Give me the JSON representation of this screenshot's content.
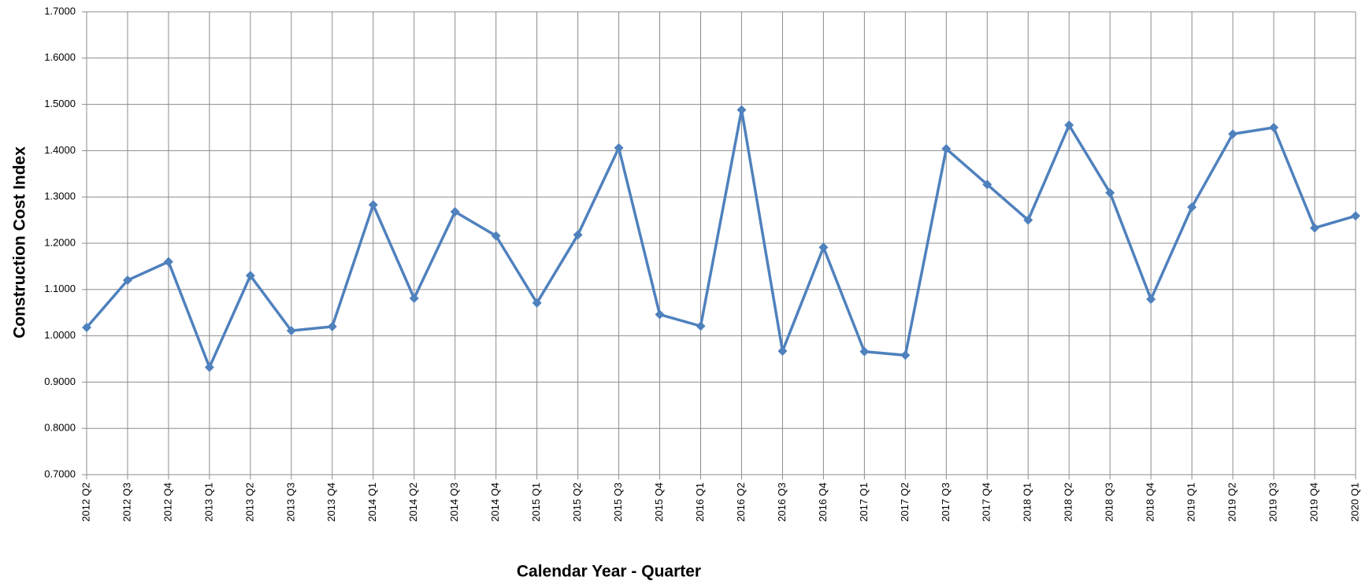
{
  "chart_data": {
    "type": "line",
    "xlabel": "Calendar Year - Quarter",
    "ylabel": "Construction Cost Index",
    "categories": [
      "2012 Q2",
      "2012 Q3",
      "2012 Q4",
      "2013 Q1",
      "2013 Q2",
      "2013 Q3",
      "2013 Q4",
      "2014 Q1",
      "2014 Q2",
      "2014 Q3",
      "2014 Q4",
      "2015 Q1",
      "2015 Q2",
      "2015 Q3",
      "2015 Q4",
      "2016 Q1",
      "2016 Q2",
      "2016 Q3",
      "2016 Q4",
      "2017 Q1",
      "2017 Q2",
      "2017 Q3",
      "2017 Q4",
      "2018 Q1",
      "2018 Q2",
      "2018 Q3",
      "2018 Q4",
      "2019 Q1",
      "2019 Q2",
      "2019 Q3",
      "2019 Q4",
      "2020 Q1"
    ],
    "values": [
      1.018,
      1.12,
      1.16,
      0.932,
      1.13,
      1.011,
      1.02,
      1.283,
      1.081,
      1.268,
      1.216,
      1.071,
      1.218,
      1.406,
      1.046,
      1.021,
      1.488,
      0.967,
      1.191,
      0.966,
      0.958,
      1.404,
      1.327,
      1.25,
      1.455,
      1.309,
      1.079,
      1.278,
      1.436,
      1.45,
      1.233,
      1.259
    ],
    "color": "#4f81bd",
    "ylim": [
      0.7,
      1.7
    ],
    "yticks": [
      {
        "value": 0.7,
        "label": "0.7000"
      },
      {
        "value": 0.8,
        "label": "0.8000"
      },
      {
        "value": 0.9,
        "label": "0.9000"
      },
      {
        "value": 1.0,
        "label": "1.0000"
      },
      {
        "value": 1.1,
        "label": "1.1000"
      },
      {
        "value": 1.2,
        "label": "1.2000"
      },
      {
        "value": 1.3,
        "label": "1.3000"
      },
      {
        "value": 1.4,
        "label": "1.4000"
      },
      {
        "value": 1.5,
        "label": "1.5000"
      },
      {
        "value": 1.6,
        "label": "1.6000"
      },
      {
        "value": 1.7,
        "label": "1.7000"
      }
    ],
    "grid": true
  }
}
